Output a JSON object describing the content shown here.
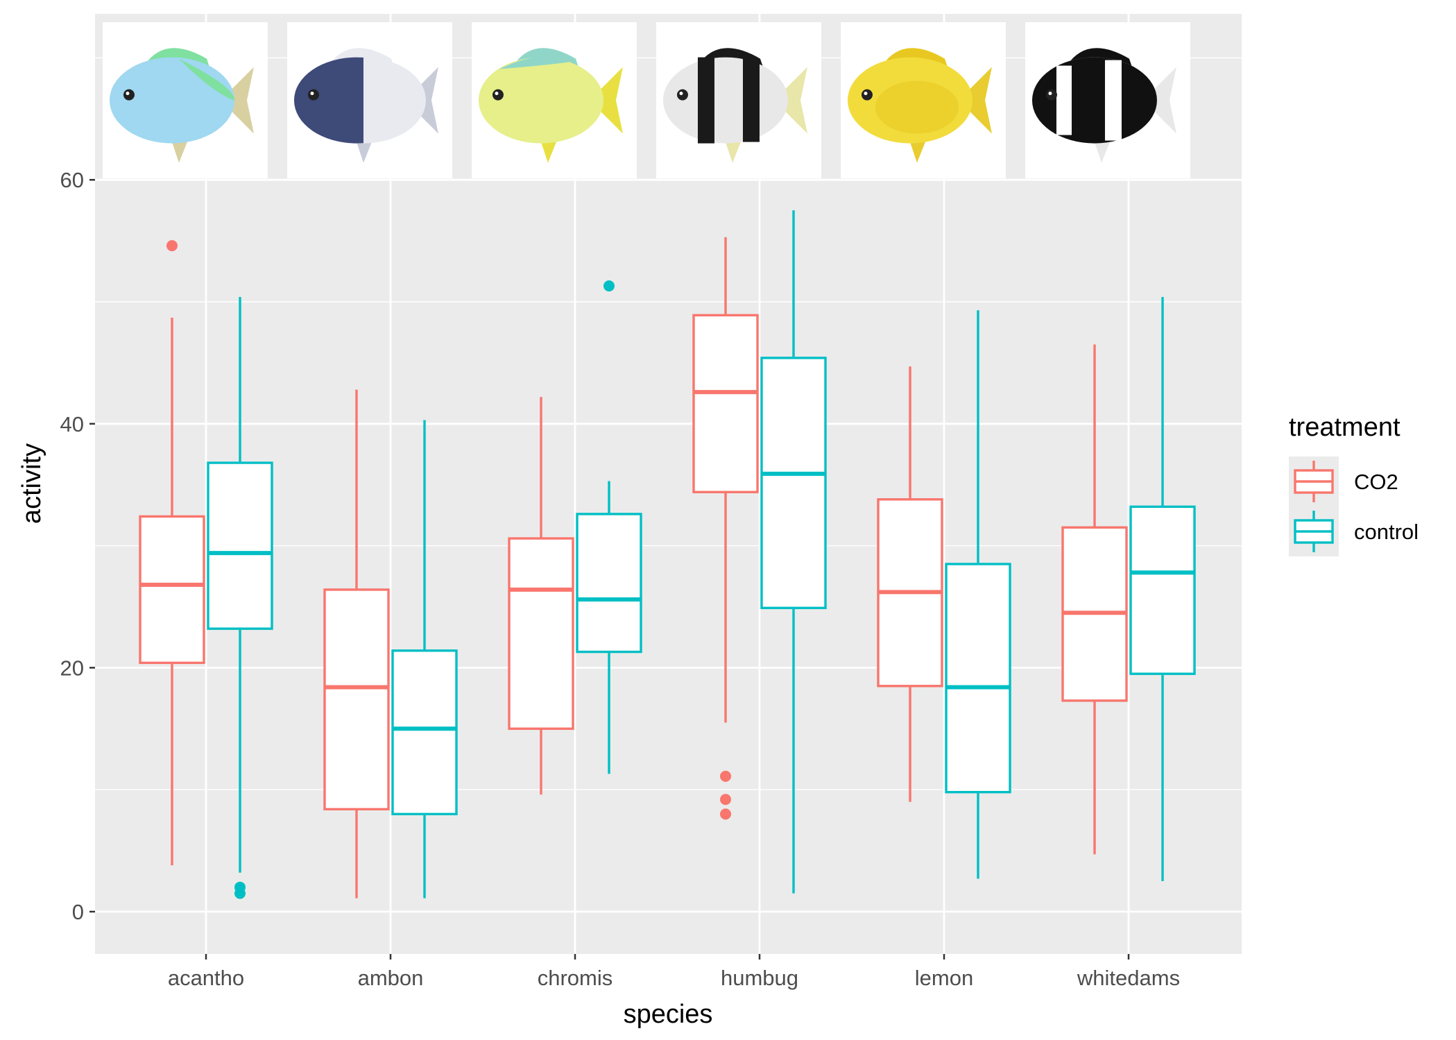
{
  "chart_data": {
    "type": "boxplot",
    "xlabel": "species",
    "ylabel": "activity",
    "categories": [
      "acantho",
      "ambon",
      "chromis",
      "humbug",
      "lemon",
      "whitedams"
    ],
    "yticks": [
      0,
      20,
      40,
      60
    ],
    "ylim": [
      -3.3,
      75
    ],
    "grid": true,
    "legend": {
      "title": "treatment",
      "position": "right",
      "entries": [
        "CO2",
        "control"
      ]
    },
    "colors": {
      "CO2": "#F8766D",
      "control": "#00BFC4"
    },
    "series": [
      {
        "name": "CO2",
        "boxes": [
          {
            "category": "acantho",
            "min": 3.8,
            "q1": 20.4,
            "median": 26.8,
            "q3": 32.4,
            "max": 48.7,
            "outliers": [
              54.6
            ]
          },
          {
            "category": "ambon",
            "min": 1.1,
            "q1": 8.4,
            "median": 18.4,
            "q3": 26.4,
            "max": 42.8,
            "outliers": []
          },
          {
            "category": "chromis",
            "min": 9.6,
            "q1": 15.0,
            "median": 26.4,
            "q3": 30.6,
            "max": 42.2,
            "outliers": []
          },
          {
            "category": "humbug",
            "min": 15.5,
            "q1": 34.4,
            "median": 42.6,
            "q3": 48.9,
            "max": 55.3,
            "outliers": [
              11.1,
              9.2,
              8.0
            ]
          },
          {
            "category": "lemon",
            "min": 9.0,
            "q1": 18.5,
            "median": 26.2,
            "q3": 33.8,
            "max": 44.7,
            "outliers": []
          },
          {
            "category": "whitedams",
            "min": 4.7,
            "q1": 17.3,
            "median": 24.5,
            "q3": 31.5,
            "max": 46.5,
            "outliers": []
          }
        ]
      },
      {
        "name": "control",
        "boxes": [
          {
            "category": "acantho",
            "min": 3.2,
            "q1": 23.2,
            "median": 29.4,
            "q3": 36.8,
            "max": 50.4,
            "outliers": [
              2.0,
              1.5
            ]
          },
          {
            "category": "ambon",
            "min": 1.1,
            "q1": 8.0,
            "median": 15.0,
            "q3": 21.4,
            "max": 40.3,
            "outliers": []
          },
          {
            "category": "chromis",
            "min": 11.3,
            "q1": 21.3,
            "median": 25.6,
            "q3": 32.6,
            "max": 35.3,
            "outliers": [
              51.3
            ]
          },
          {
            "category": "humbug",
            "min": 1.5,
            "q1": 24.9,
            "median": 35.9,
            "q3": 45.4,
            "max": 57.5,
            "outliers": []
          },
          {
            "category": "lemon",
            "min": 2.7,
            "q1": 9.8,
            "median": 18.4,
            "q3": 28.5,
            "max": 49.3,
            "outliers": []
          },
          {
            "category": "whitedams",
            "min": 2.5,
            "q1": 19.5,
            "median": 27.8,
            "q3": 33.2,
            "max": 50.4,
            "outliers": []
          }
        ]
      }
    ],
    "fish_images": [
      {
        "category": "acantho",
        "icon": "acantho-fish-icon",
        "body": "#9fd8f0",
        "accent": "#7fe0a0",
        "fin": "#d8d0a0"
      },
      {
        "category": "ambon",
        "icon": "ambon-fish-icon",
        "body": "#3e4a78",
        "accent": "#e8eaf0",
        "fin": "#c8ccd8"
      },
      {
        "category": "chromis",
        "icon": "chromis-fish-icon",
        "body": "#e6ef8a",
        "accent": "#8fd6c8",
        "fin": "#e8e040"
      },
      {
        "category": "humbug",
        "icon": "humbug-fish-icon",
        "body": "#e8e8e8",
        "accent": "#1a1a1a",
        "fin": "#e8e6a8"
      },
      {
        "category": "lemon",
        "icon": "lemon-fish-icon",
        "body": "#f2dc3c",
        "accent": "#e8c820",
        "fin": "#e8cc30"
      },
      {
        "category": "whitedams",
        "icon": "whitedams-fish-icon",
        "body": "#ffffff",
        "accent": "#111111",
        "fin": "#e8e8e8"
      }
    ]
  }
}
